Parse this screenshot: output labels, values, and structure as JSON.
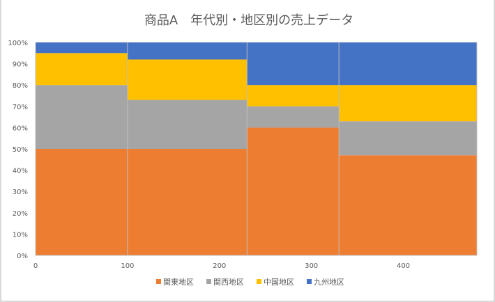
{
  "chart_data": {
    "type": "bar",
    "subtype": "mekko-100-percent-stacked",
    "title": "商品A　年代別・地区別の売上データ",
    "x_edges": [
      0,
      100,
      230,
      330,
      480
    ],
    "xlim": [
      0,
      480
    ],
    "xticks": [
      "0",
      "100",
      "200",
      "300",
      "400"
    ],
    "ylim": [
      0,
      1
    ],
    "yticks": [
      "0%",
      "10%",
      "20%",
      "30%",
      "40%",
      "50%",
      "60%",
      "70%",
      "80%",
      "90%",
      "100%"
    ],
    "grid": true,
    "legend_position": "bottom",
    "series": [
      {
        "name": "関東地区",
        "color": "#ED7D31",
        "values": [
          0.5,
          0.5,
          0.6,
          0.47
        ]
      },
      {
        "name": "関西地区",
        "color": "#A5A5A5",
        "values": [
          0.3,
          0.23,
          0.1,
          0.16
        ]
      },
      {
        "name": "中国地区",
        "color": "#FFC000",
        "values": [
          0.15,
          0.19,
          0.1,
          0.17
        ]
      },
      {
        "name": "九州地区",
        "color": "#4472C4",
        "values": [
          0.05,
          0.08,
          0.2,
          0.2
        ]
      }
    ]
  }
}
